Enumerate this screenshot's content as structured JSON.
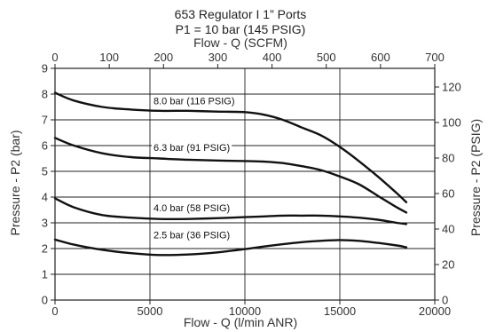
{
  "chart_data": {
    "type": "line",
    "title": "653 Regulator I 1” Ports",
    "subtitle": "P1 = 10 bar (145 PSIG)",
    "xlabel": "Flow - Q (l/min ANR)",
    "x2label": "Flow - Q (SCFM)",
    "ylabel": "Pressure - P2 (bar)",
    "y2label": "Pressure - P2 (PSIG)",
    "xlim": [
      0,
      20000
    ],
    "ylim": [
      0,
      9
    ],
    "x2lim": [
      0,
      700
    ],
    "y2lim": [
      0,
      130.5
    ],
    "x_ticks": [
      0,
      5000,
      10000,
      15000,
      20000
    ],
    "x_tick_labels": [
      "0",
      "5000",
      "10000",
      "15000",
      "20000"
    ],
    "y_ticks": [
      0,
      1,
      2,
      3,
      4,
      5,
      6,
      7,
      8,
      9
    ],
    "y_tick_labels": [
      "0",
      "1",
      "2",
      "3",
      "4",
      "5",
      "6",
      "7",
      "8",
      "9"
    ],
    "x2_ticks": [
      0,
      100,
      200,
      300,
      400,
      500,
      600,
      700
    ],
    "x2_tick_labels": [
      "0",
      "100",
      "200",
      "300",
      "400",
      "500",
      "600",
      "700"
    ],
    "y2_ticks": [
      0,
      20,
      40,
      60,
      80,
      100,
      120
    ],
    "y2_tick_labels": [
      "0",
      "20",
      "40",
      "60",
      "80",
      "100",
      "120"
    ],
    "x_grid": [
      0,
      5000,
      10000,
      15000,
      20000
    ],
    "y_grid": [
      1,
      2,
      3,
      4,
      5,
      6,
      7,
      8
    ],
    "series": [
      {
        "name": "8.0 bar (116 PSIG)",
        "label_at": [
          5000,
          7.6
        ],
        "x": [
          0,
          1000,
          2500,
          4000,
          5500,
          7000,
          8500,
          10000,
          11000,
          12000,
          13000,
          14000,
          15000,
          16000,
          17000,
          18000,
          18500
        ],
        "y": [
          8.05,
          7.75,
          7.5,
          7.4,
          7.35,
          7.35,
          7.32,
          7.3,
          7.2,
          7.0,
          6.7,
          6.4,
          5.95,
          5.4,
          4.8,
          4.15,
          3.8
        ]
      },
      {
        "name": "6.3 bar (91 PSIG)",
        "label_at": [
          5000,
          5.8
        ],
        "x": [
          0,
          1000,
          2500,
          4000,
          5500,
          7000,
          8500,
          10000,
          11000,
          12000,
          13000,
          14000,
          15000,
          16000,
          17000,
          18000,
          18500
        ],
        "y": [
          6.3,
          6.0,
          5.7,
          5.55,
          5.5,
          5.45,
          5.42,
          5.4,
          5.38,
          5.32,
          5.2,
          5.05,
          4.8,
          4.5,
          4.05,
          3.6,
          3.4
        ]
      },
      {
        "name": "4.0 bar (58 PSIG)",
        "label_at": [
          5000,
          3.45
        ],
        "x": [
          0,
          1000,
          2500,
          4000,
          5500,
          7000,
          8500,
          10000,
          11000,
          12000,
          13000,
          14000,
          15000,
          16000,
          17000,
          18000,
          18500
        ],
        "y": [
          3.95,
          3.6,
          3.3,
          3.2,
          3.15,
          3.15,
          3.18,
          3.22,
          3.25,
          3.28,
          3.28,
          3.28,
          3.25,
          3.2,
          3.12,
          3.0,
          2.95
        ]
      },
      {
        "name": "2.5 bar (36 PSIG)",
        "label_at": [
          5000,
          2.4
        ],
        "x": [
          0,
          1000,
          2500,
          4000,
          5500,
          7000,
          8500,
          10000,
          11000,
          12000,
          13000,
          14000,
          15000,
          16000,
          17000,
          18000,
          18500
        ],
        "y": [
          2.35,
          2.15,
          1.95,
          1.82,
          1.75,
          1.77,
          1.85,
          1.98,
          2.08,
          2.17,
          2.25,
          2.3,
          2.33,
          2.3,
          2.22,
          2.12,
          2.05
        ]
      }
    ]
  }
}
